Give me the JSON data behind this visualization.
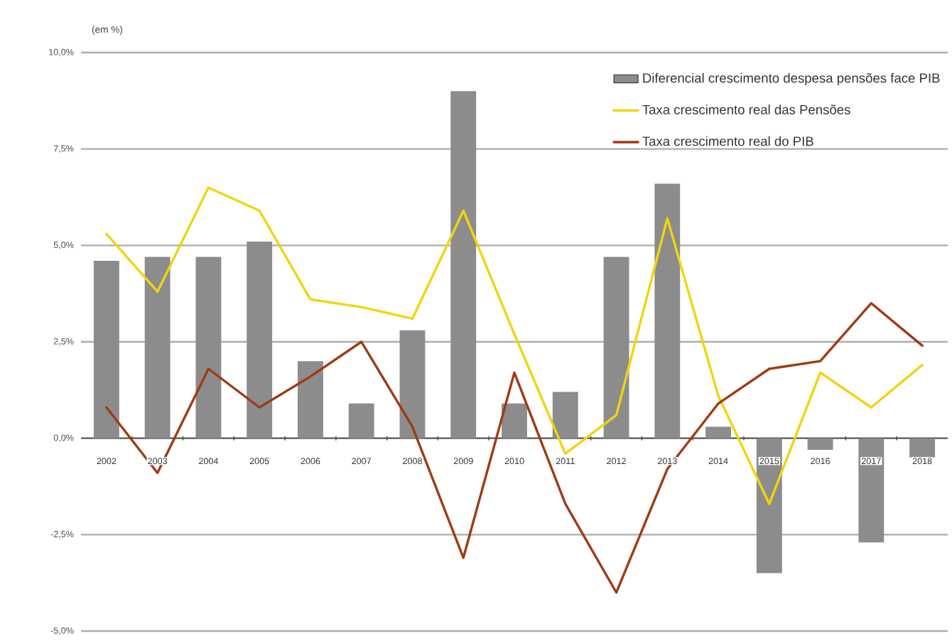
{
  "chart_data": {
    "type": "bar",
    "ylabel": "(em %)",
    "categories": [
      "2002",
      "2003",
      "2004",
      "2005",
      "2006",
      "2007",
      "2008",
      "2009",
      "2010",
      "2011",
      "2012",
      "2013",
      "2014",
      "2015",
      "2016",
      "2017",
      "2018"
    ],
    "series": [
      {
        "name": "Diferencial crescimento despesa pensões face PIB",
        "color": "#8c8c8c",
        "values": [
          4.6,
          4.7,
          4.7,
          5.1,
          2.0,
          0.9,
          2.8,
          9.0,
          0.9,
          1.2,
          4.7,
          6.6,
          0.3,
          -3.5,
          -0.3,
          -2.7,
          -0.5
        ]
      },
      {
        "name": "Taxa crescimento real das Pensões",
        "type": "line",
        "color": "#f2d40f",
        "values": [
          5.3,
          3.8,
          6.5,
          5.9,
          3.6,
          3.4,
          3.1,
          5.9,
          2.7,
          -0.4,
          0.6,
          5.7,
          1.1,
          -1.7,
          1.7,
          0.8,
          1.9
        ]
      },
      {
        "name": "Taxa crescimento real do PIB",
        "type": "line",
        "color": "#9e3b15",
        "values": [
          0.8,
          -0.9,
          1.8,
          0.8,
          1.6,
          2.5,
          0.3,
          -3.1,
          1.7,
          -1.7,
          -4.0,
          -0.8,
          0.9,
          1.8,
          2.0,
          3.5,
          2.4
        ]
      }
    ],
    "ylim": [
      -5,
      10
    ],
    "yticks": [
      {
        "value": -5,
        "label": "-5,0%"
      },
      {
        "value": -2.5,
        "label": "-2,5%"
      },
      {
        "value": 0,
        "label": "0,0%"
      },
      {
        "value": 2.5,
        "label": "2,5%"
      },
      {
        "value": 5,
        "label": "5,0%"
      },
      {
        "value": 7.5,
        "label": "7,5%"
      },
      {
        "value": 10,
        "label": "10,0%"
      }
    ],
    "grid": "y",
    "legend": "top right"
  }
}
